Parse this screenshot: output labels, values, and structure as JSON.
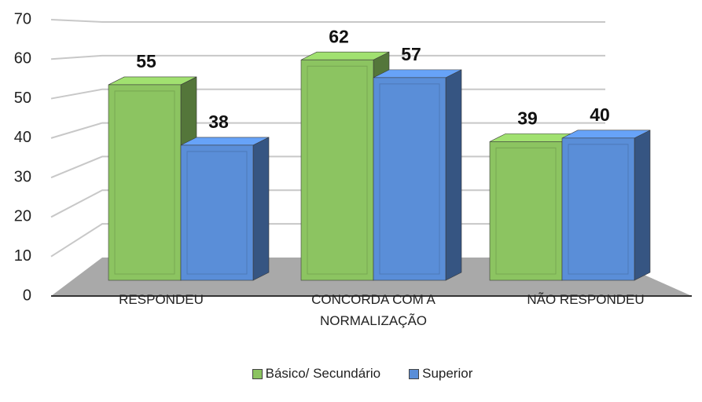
{
  "chart_data": {
    "type": "bar3d",
    "categories": [
      "RESPONDEU",
      "CONCORDA COM A NORMALIZAÇÃO",
      "NÃO RESPONDEU"
    ],
    "series": [
      {
        "name": "Básico/ Secundário",
        "color": "#8cc461",
        "values": [
          55,
          62,
          39
        ]
      },
      {
        "name": "Superior",
        "color": "#5a8ed8",
        "values": [
          38,
          57,
          40
        ]
      }
    ],
    "ylim": [
      0,
      70
    ],
    "yticks": [
      0,
      10,
      20,
      30,
      40,
      50,
      60,
      70
    ],
    "grid": true,
    "legend": "bottom"
  }
}
